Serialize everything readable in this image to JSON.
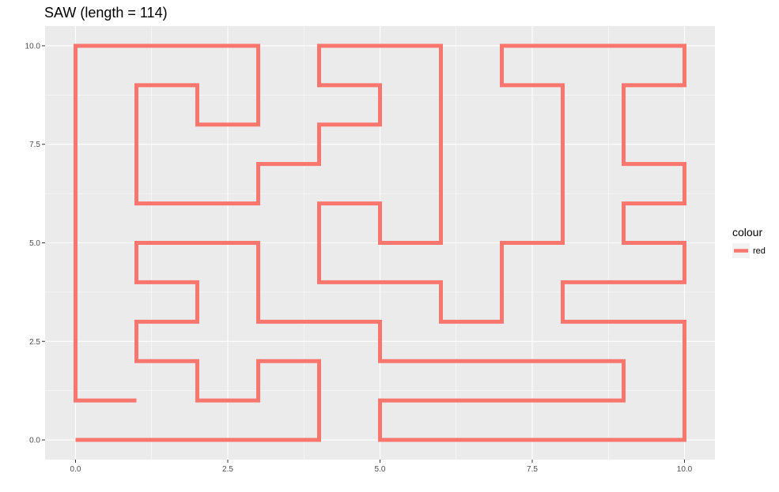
{
  "chart_data": {
    "type": "line",
    "title": "SAW (length = 114)",
    "xlabel": "",
    "ylabel": "",
    "xlim": [
      -0.5,
      10.5
    ],
    "ylim": [
      -0.5,
      10.5
    ],
    "x_ticks": [
      0.0,
      2.5,
      5.0,
      7.5,
      10.0
    ],
    "y_ticks": [
      0.0,
      2.5,
      5.0,
      7.5,
      10.0
    ],
    "x_tick_labels": [
      "0.0",
      "2.5",
      "5.0",
      "7.5",
      "10.0"
    ],
    "y_tick_labels": [
      "0.0",
      "2.5",
      "5.0",
      "7.5",
      "10.0"
    ],
    "grid": true,
    "legend": {
      "title": "colour",
      "placement": "right",
      "entries": [
        {
          "label": "red",
          "color": "#F8766D"
        }
      ]
    },
    "series": [
      {
        "name": "red",
        "color": "#F8766D",
        "points": [
          [
            1,
            1
          ],
          [
            0,
            1
          ],
          [
            0,
            10
          ],
          [
            3,
            10
          ],
          [
            3,
            8
          ],
          [
            2,
            8
          ],
          [
            2,
            9
          ],
          [
            1,
            9
          ],
          [
            1,
            6
          ],
          [
            3,
            6
          ],
          [
            3,
            7
          ],
          [
            4,
            7
          ],
          [
            4,
            8
          ],
          [
            5,
            8
          ],
          [
            5,
            9
          ],
          [
            4,
            9
          ],
          [
            4,
            10
          ],
          [
            6,
            10
          ],
          [
            6,
            5
          ],
          [
            5,
            5
          ],
          [
            5,
            6
          ],
          [
            4,
            6
          ],
          [
            4,
            4
          ],
          [
            6,
            4
          ],
          [
            6,
            3
          ],
          [
            7,
            3
          ],
          [
            7,
            5
          ],
          [
            8,
            5
          ],
          [
            8,
            9
          ],
          [
            7,
            9
          ],
          [
            7,
            10
          ],
          [
            10,
            10
          ],
          [
            10,
            9
          ],
          [
            9,
            9
          ],
          [
            9,
            7
          ],
          [
            10,
            7
          ],
          [
            10,
            6
          ],
          [
            9,
            6
          ],
          [
            9,
            5
          ],
          [
            10,
            5
          ],
          [
            10,
            4
          ],
          [
            8,
            4
          ],
          [
            8,
            3
          ],
          [
            10,
            3
          ],
          [
            10,
            0
          ],
          [
            5,
            0
          ],
          [
            5,
            1
          ],
          [
            9,
            1
          ],
          [
            9,
            2
          ],
          [
            5,
            2
          ],
          [
            5,
            3
          ],
          [
            3,
            3
          ],
          [
            3,
            5
          ],
          [
            1,
            5
          ],
          [
            1,
            4
          ],
          [
            2,
            4
          ],
          [
            2,
            3
          ],
          [
            1,
            3
          ],
          [
            1,
            2
          ],
          [
            2,
            2
          ],
          [
            2,
            1
          ],
          [
            3,
            1
          ],
          [
            3,
            2
          ],
          [
            4,
            2
          ],
          [
            4,
            0
          ],
          [
            0,
            0
          ]
        ]
      }
    ]
  },
  "colors": {
    "panel_background": "#EBEBEB",
    "grid_major": "#FFFFFF",
    "line": "#F8766D"
  }
}
